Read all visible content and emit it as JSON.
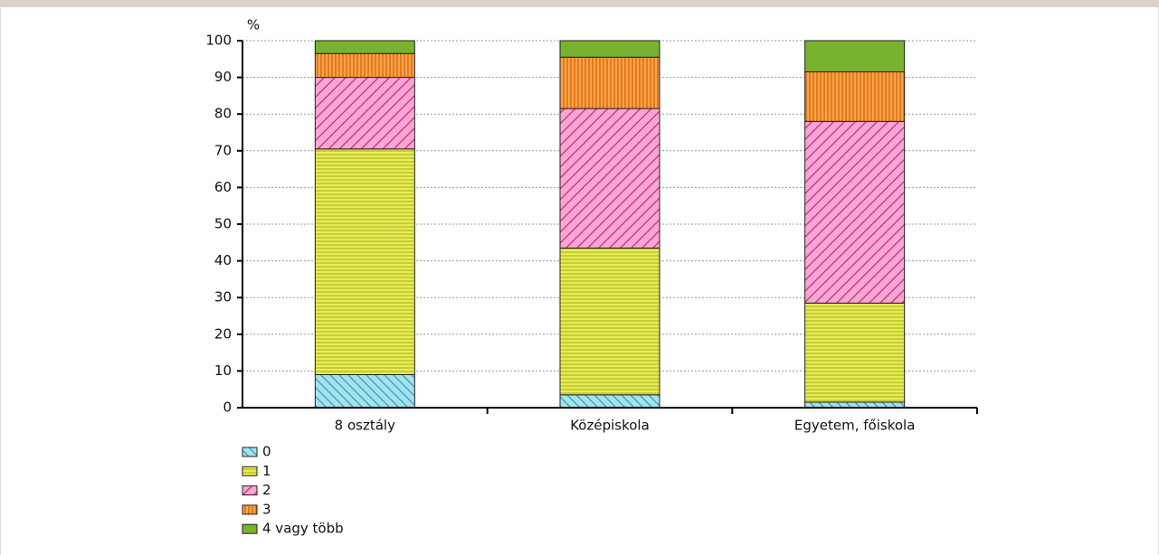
{
  "chart_data": {
    "type": "stacked_bar",
    "y_label": "%",
    "categories": [
      "8 osztály",
      "Középiskola",
      "Egyetem, főiskola"
    ],
    "series": [
      {
        "name": "0",
        "color": "#a8e0ee",
        "values": [
          9,
          3.5,
          1.5
        ]
      },
      {
        "name": "1",
        "color": "#e6ec58",
        "values": [
          61.5,
          40,
          27
        ]
      },
      {
        "name": "2",
        "color": "#f6a8d2",
        "values": [
          19.5,
          38,
          49.5
        ]
      },
      {
        "name": "3",
        "color": "#f7a64a",
        "values": [
          6.5,
          14,
          13.5
        ]
      },
      {
        "name": "4 vagy több",
        "color": "#77b32c",
        "values": [
          3.5,
          4.5,
          8.5
        ]
      }
    ],
    "ylim": [
      0,
      100
    ],
    "yticks": [
      0,
      10,
      20,
      30,
      40,
      50,
      60,
      70,
      80,
      90,
      100
    ],
    "grid": true
  }
}
